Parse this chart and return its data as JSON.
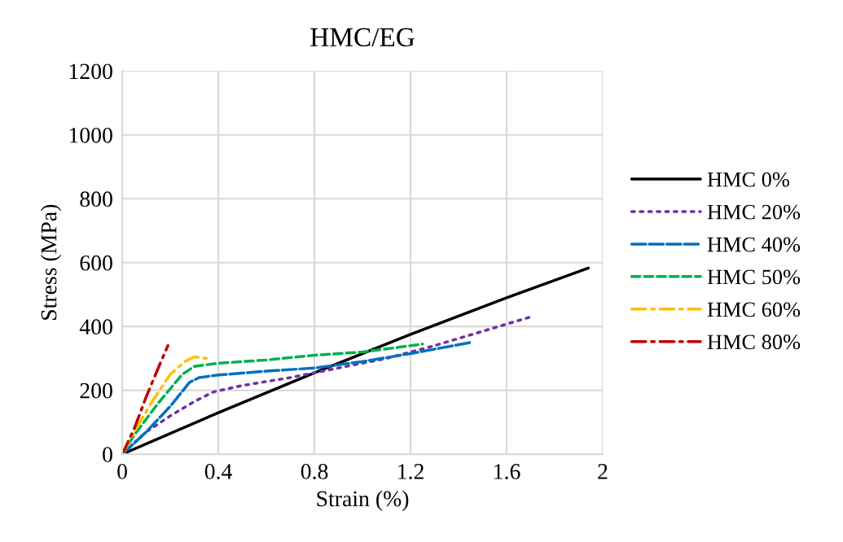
{
  "chart_data": {
    "type": "line",
    "title": "HMC/EG",
    "xlabel": "Strain (%)",
    "ylabel": "Stress (MPa)",
    "xlim": [
      0,
      2
    ],
    "xticks": [
      0,
      0.4,
      0.8,
      1.2,
      1.6,
      2
    ],
    "ylim": [
      0,
      1200
    ],
    "yticks": [
      0,
      200,
      400,
      600,
      800,
      1000,
      1200
    ],
    "grid": true,
    "legend": "right",
    "marker": "none",
    "series": [
      {
        "name": "HMC 0%",
        "color": "#000000",
        "line_style": "solid",
        "x": [
          0,
          0.4,
          0.8,
          1.2,
          1.6,
          1.94
        ],
        "values": [
          0,
          130,
          255,
          375,
          490,
          583
        ]
      },
      {
        "name": "HMC 20%",
        "color": "#7030a0",
        "line_style": "dotted",
        "x": [
          0,
          0.1,
          0.2,
          0.3,
          0.38,
          0.5,
          0.7,
          0.9,
          1.1,
          1.3,
          1.5,
          1.7
        ],
        "values": [
          0,
          70,
          120,
          165,
          195,
          215,
          240,
          270,
          300,
          340,
          385,
          430
        ]
      },
      {
        "name": "HMC 40%",
        "color": "#0070c0",
        "line_style": "longdash",
        "x": [
          0,
          0.1,
          0.2,
          0.28,
          0.32,
          0.4,
          0.6,
          0.8,
          1.0,
          1.2,
          1.45
        ],
        "values": [
          0,
          70,
          150,
          225,
          240,
          248,
          260,
          270,
          290,
          315,
          350
        ]
      },
      {
        "name": "HMC 50%",
        "color": "#00b050",
        "line_style": "dashed",
        "x": [
          0,
          0.05,
          0.15,
          0.25,
          0.3,
          0.4,
          0.6,
          0.8,
          1.0,
          1.2,
          1.25
        ],
        "values": [
          0,
          60,
          160,
          250,
          275,
          285,
          295,
          310,
          320,
          340,
          345
        ]
      },
      {
        "name": "HMC 60%",
        "color": "#ffc000",
        "line_style": "dashdot",
        "x": [
          0,
          0.05,
          0.12,
          0.2,
          0.26,
          0.3,
          0.35
        ],
        "values": [
          0,
          70,
          160,
          250,
          290,
          305,
          300
        ]
      },
      {
        "name": "HMC 80%",
        "color": "#c00000",
        "line_style": "dashdot",
        "x": [
          0,
          0.05,
          0.1,
          0.15,
          0.19
        ],
        "values": [
          0,
          80,
          180,
          270,
          340
        ]
      }
    ]
  }
}
